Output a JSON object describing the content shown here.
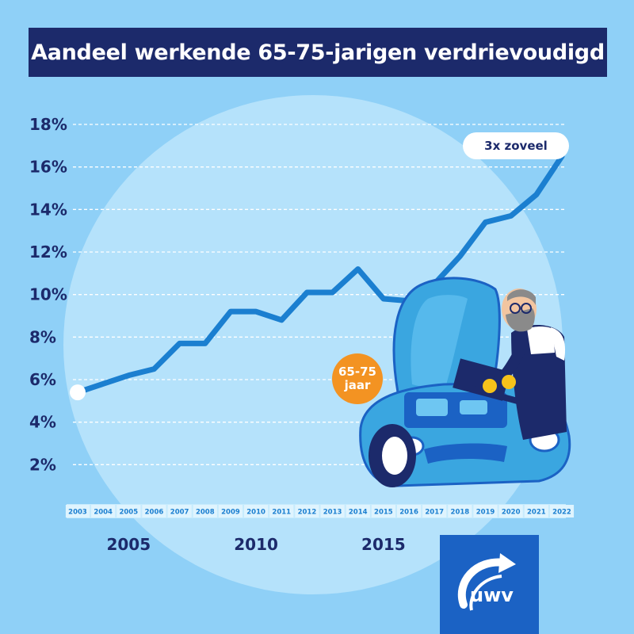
{
  "title": "Aandeel werkende 65-75-jarigen verdrievoudigd",
  "chart_data": {
    "type": "line",
    "title": "Aandeel werkende 65-75-jarigen verdrievoudigd",
    "xlabel": "",
    "ylabel": "",
    "x": [
      2003,
      2004,
      2005,
      2006,
      2007,
      2008,
      2009,
      2010,
      2011,
      2012,
      2013,
      2014,
      2015,
      2016,
      2017,
      2018,
      2019,
      2020,
      2021,
      2022
    ],
    "values": [
      5.4,
      5.8,
      6.2,
      6.5,
      7.7,
      7.7,
      9.2,
      9.2,
      8.8,
      10.1,
      10.1,
      11.2,
      9.8,
      9.7,
      10.5,
      11.8,
      13.4,
      13.7,
      14.7,
      16.5
    ],
    "ylim": [
      0,
      18
    ],
    "yticks": [
      "2%",
      "4%",
      "6%",
      "8%",
      "10%",
      "12%",
      "14%",
      "16%",
      "18%"
    ],
    "x_major_labels": [
      "2005",
      "2010",
      "2015"
    ],
    "grid": true,
    "line_color": "#1b7fd0",
    "annotations": {
      "end_label": "3x zoveel",
      "group_badge_line1": "65-75",
      "group_badge_line2": "jaar"
    }
  },
  "logo": {
    "text": "UWV"
  },
  "colors": {
    "background": "#8fd0f7",
    "navy": "#1c2a6b",
    "orange": "#f39322",
    "blue": "#1b7fd0"
  }
}
